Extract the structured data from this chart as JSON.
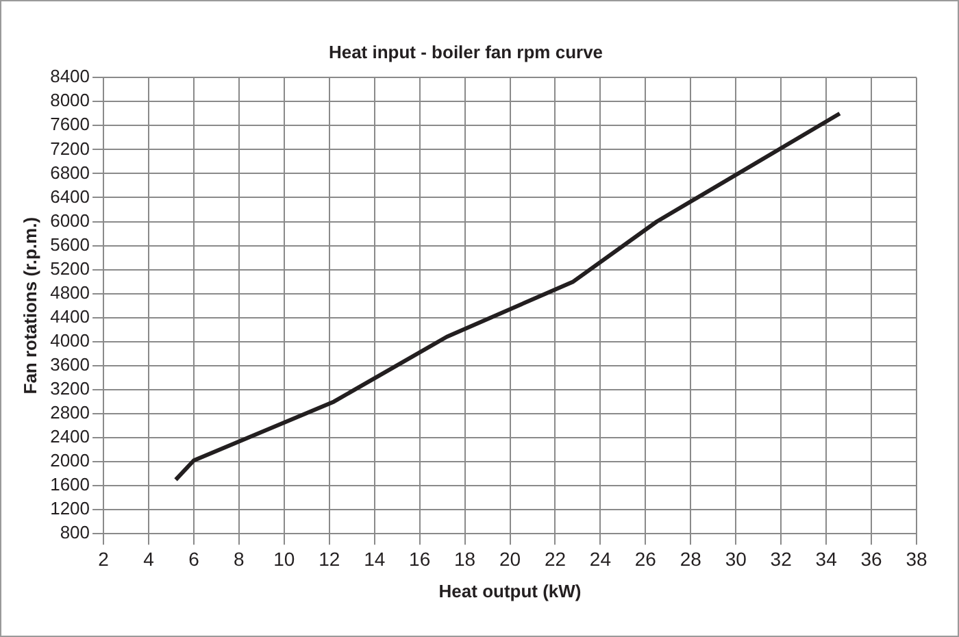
{
  "chart_data": {
    "type": "line",
    "title": "Heat input - boiler fan rpm curve",
    "xlabel": "Heat output (kW)",
    "ylabel": "Fan rotations (r.p.m.)",
    "x": [
      5.2,
      6,
      12.2,
      17.2,
      22.8,
      26.5,
      34.6
    ],
    "series": [
      {
        "color": "#231f20",
        "values": [
          1700,
          2020,
          3000,
          4080,
          5000,
          6000,
          7800
        ]
      }
    ],
    "xlim": [
      2,
      38
    ],
    "xticks": [
      2,
      4,
      6,
      8,
      10,
      12,
      14,
      16,
      18,
      20,
      22,
      24,
      26,
      28,
      30,
      32,
      34,
      36,
      38
    ],
    "ylim": [
      800,
      8400
    ],
    "yticks": [
      800,
      1200,
      1600,
      2000,
      2400,
      2800,
      3200,
      3600,
      4000,
      4400,
      4800,
      5200,
      5600,
      6000,
      6400,
      6800,
      7200,
      7600,
      8000,
      8400
    ],
    "grid": true,
    "legend": false,
    "marker": "none",
    "line_style": "solid"
  }
}
